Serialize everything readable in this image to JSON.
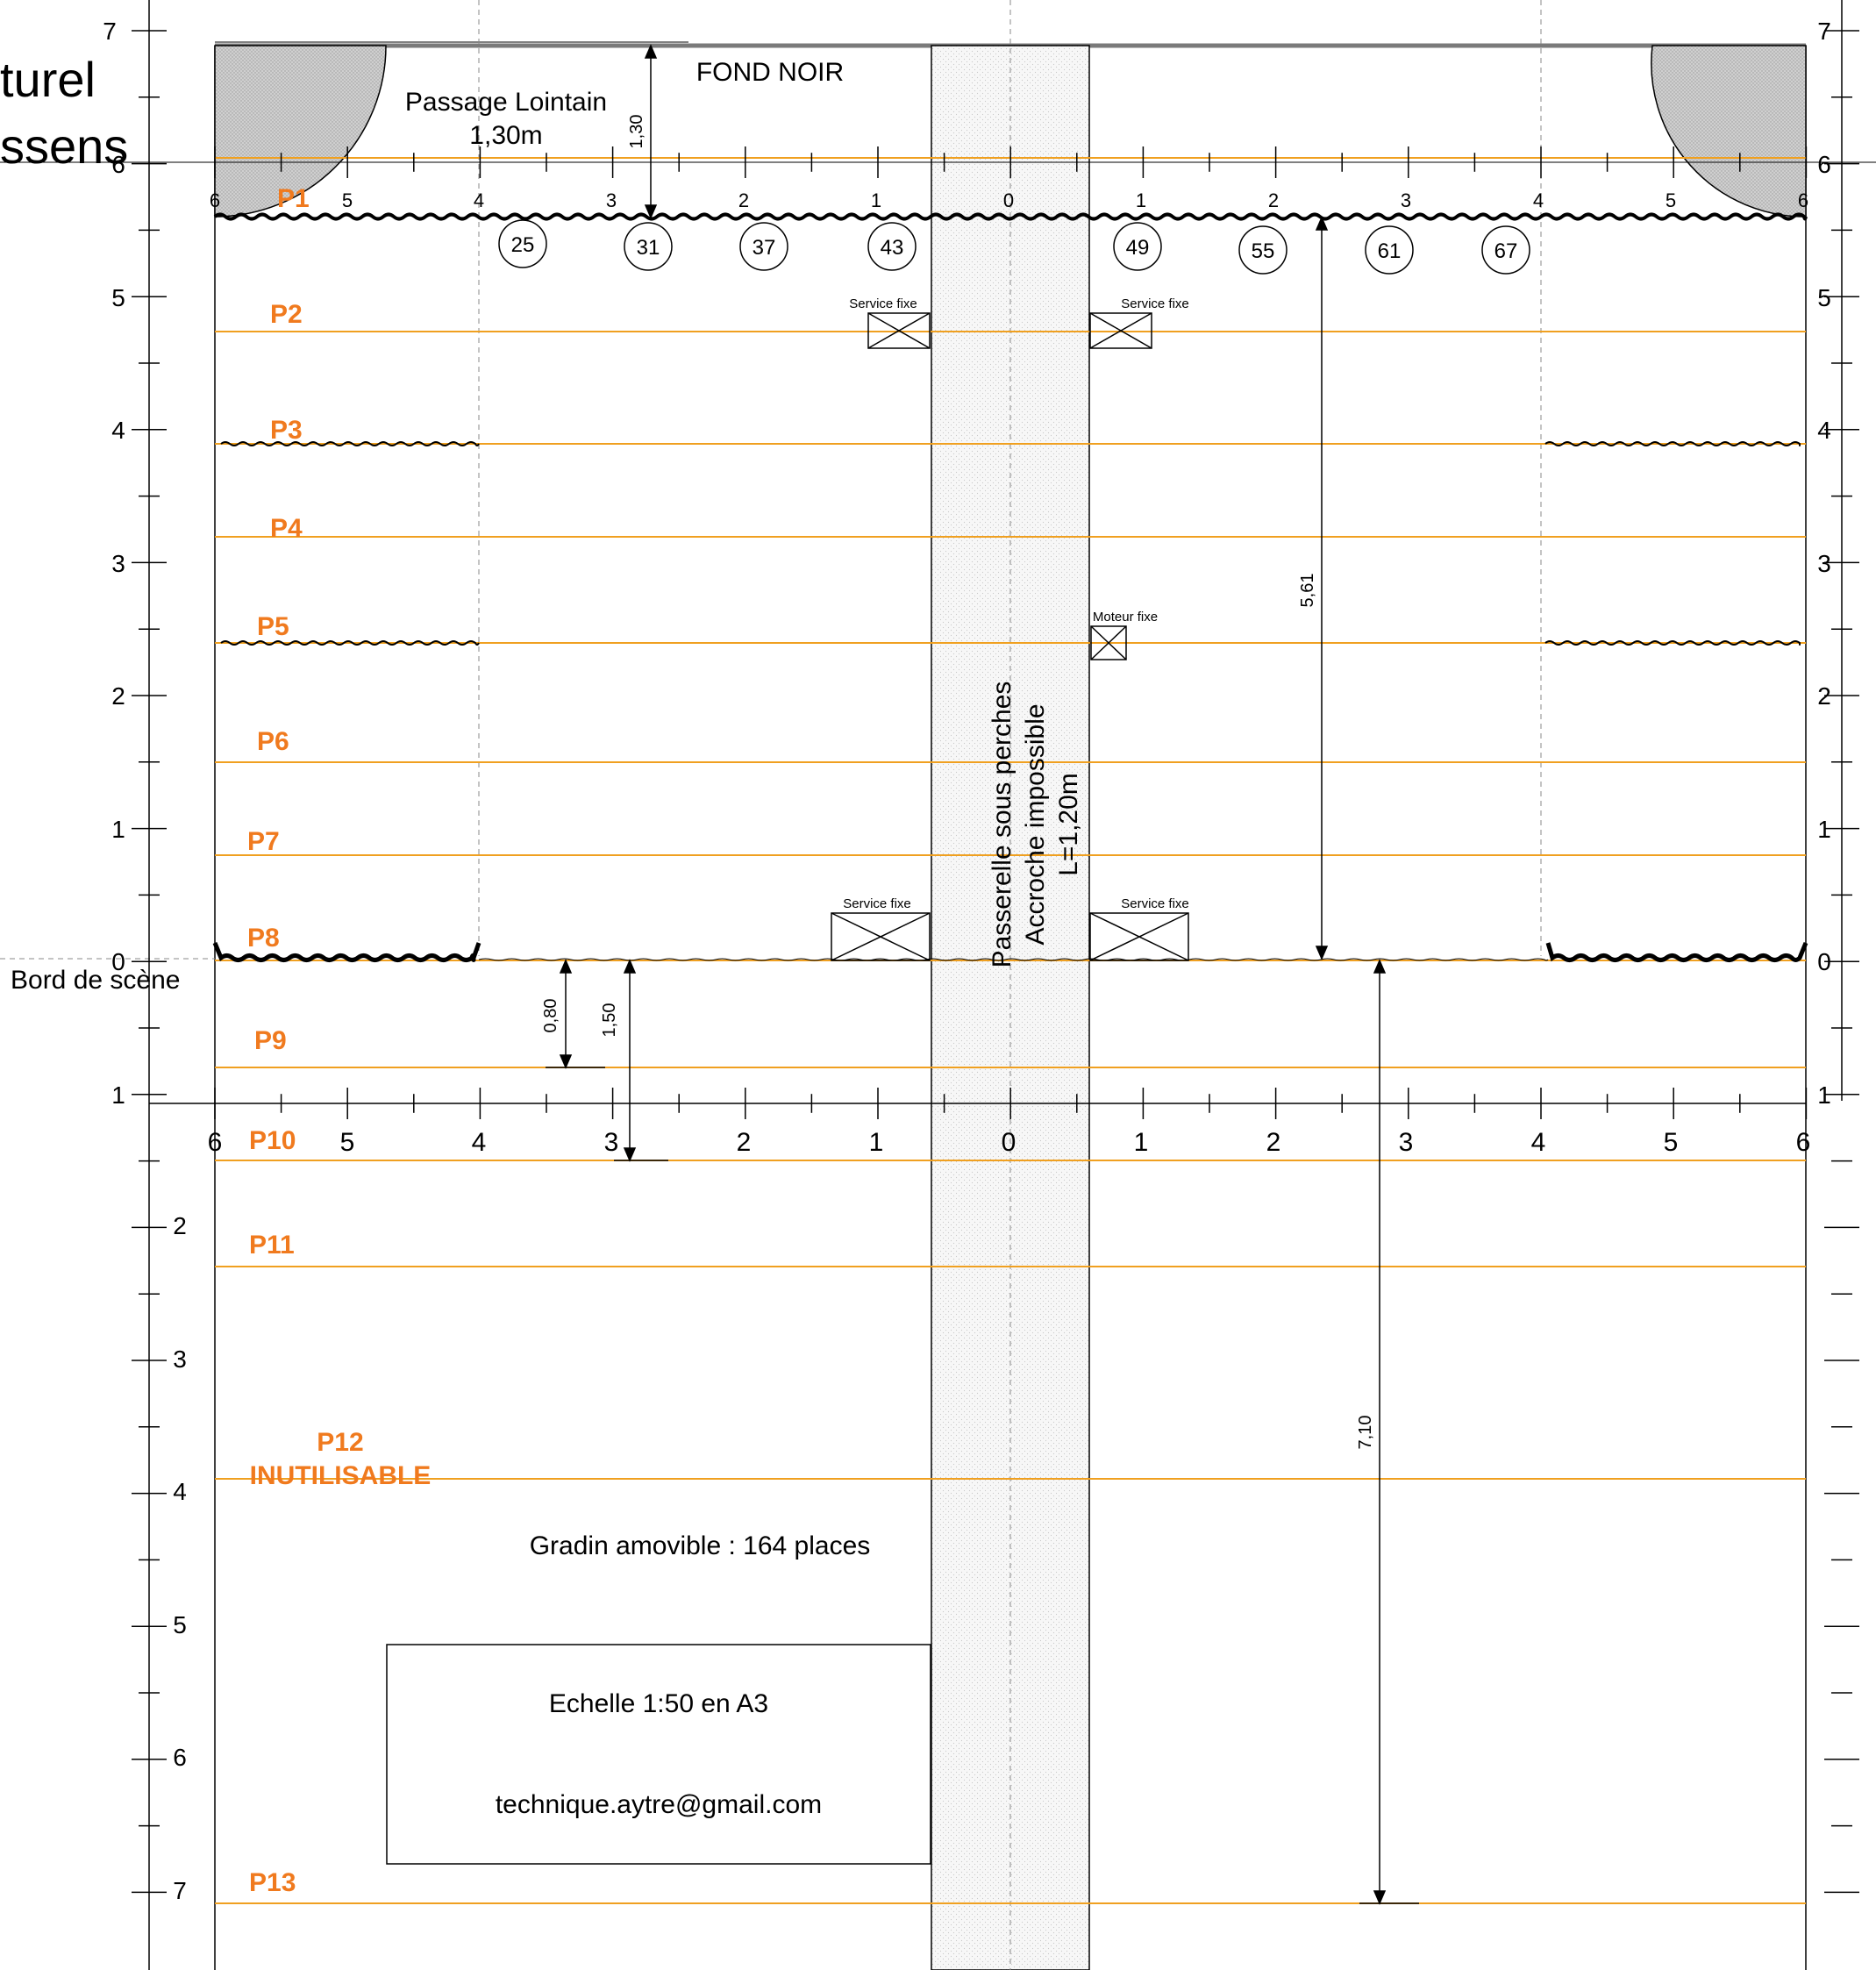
{
  "colors": {
    "batten": "#F0A020",
    "batten_label": "#F07A1E",
    "ink": "#000000",
    "hatch": "#cfcfcf"
  },
  "title_fragments": [
    "turel",
    "ssens"
  ],
  "labels": {
    "fond_noir": "FOND NOIR",
    "passage_lointain": "Passage Lointain",
    "passage_width": "1,30m",
    "bord_de_scene": "Bord de scène",
    "service_fixe": "Service fixe",
    "moteur_fixe": "Moteur fixe",
    "gradin": "Gradin amovible : 164 places",
    "echelle": "Echelle 1:50 en A3",
    "email": "technique.aytre@gmail.com",
    "passerelle": [
      "Passerelle sous perches",
      "Accroche impossible",
      "L=1,20m"
    ]
  },
  "dimensions": {
    "d_1_30": "1,30",
    "d_5_61": "5,61",
    "d_0_80": "0,80",
    "d_1_50": "1,50",
    "d_7_10": "7,10"
  },
  "rulers": {
    "vertical_stage": [
      "7",
      "6",
      "5",
      "4",
      "3",
      "2",
      "1",
      "0",
      "1"
    ],
    "vertical_house": [
      "2",
      "3",
      "4",
      "5",
      "6",
      "7"
    ],
    "horizontal": [
      "6",
      "5",
      "4",
      "3",
      "2",
      "1",
      "0",
      "1",
      "2",
      "3",
      "4",
      "5",
      "6"
    ]
  },
  "circle_numbers": [
    "25",
    "31",
    "37",
    "43",
    "49",
    "55",
    "61",
    "67"
  ],
  "battens": [
    {
      "name": "P1"
    },
    {
      "name": "P2"
    },
    {
      "name": "P3"
    },
    {
      "name": "P4"
    },
    {
      "name": "P5"
    },
    {
      "name": "P6"
    },
    {
      "name": "P7"
    },
    {
      "name": "P8"
    },
    {
      "name": "P9"
    },
    {
      "name": "P10"
    },
    {
      "name": "P11"
    },
    {
      "name": "P12",
      "note": "INUTILISABLE"
    },
    {
      "name": "P13"
    }
  ]
}
